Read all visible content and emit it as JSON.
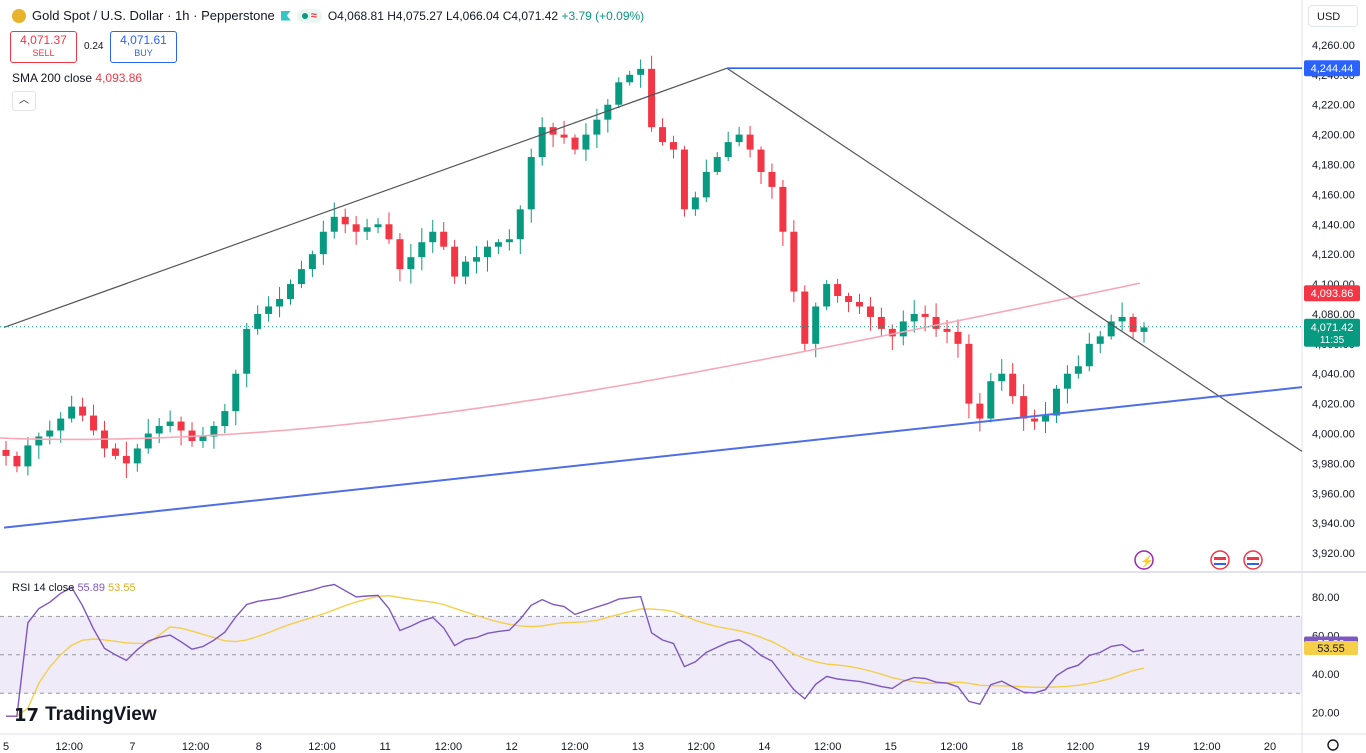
{
  "header": {
    "symbol": "Gold Spot / U.S. Dollar · 1h · Pepperstone",
    "open": "O4,068.81",
    "high": "H4,075.27",
    "low": "L4,066.04",
    "close": "C4,071.42",
    "change": "+3.79 (+0.09%)"
  },
  "trade": {
    "sell_price": "4,071.37",
    "sell_label": "SELL",
    "spread": "0.24",
    "buy_price": "4,071.61",
    "buy_label": "BUY"
  },
  "indicators": {
    "sma_label": "SMA 200 close",
    "sma_value": "4,093.86",
    "rsi_label": "RSI 14 close",
    "rsi_value": "55.89",
    "rsi_ma_value": "53.55"
  },
  "currency": "USD",
  "branding": "TradingView",
  "colors": {
    "up": "#089981",
    "down": "#f23645",
    "sma": "#f7a8b8",
    "rsi": "#7e57c2",
    "rsi_ma": "#f5cf4a",
    "trendline": "#4f6ee8",
    "hline": "#2962ff",
    "price": "#089981"
  },
  "chart_data": {
    "type": "candlestick",
    "ylim": [
      3910,
      4270
    ],
    "y_ticks": [
      "4,260.00",
      "4,240.00",
      "4,220.00",
      "4,200.00",
      "4,180.00",
      "4,160.00",
      "4,140.00",
      "4,120.00",
      "4,100.00",
      "4,080.00",
      "4,060.00",
      "4,040.00",
      "4,020.00",
      "4,000.00",
      "3,980.00",
      "3,960.00",
      "3,940.00",
      "3,920.00"
    ],
    "x_ticks": [
      "5",
      "12:00",
      "7",
      "12:00",
      "8",
      "12:00",
      "11",
      "12:00",
      "12",
      "12:00",
      "13",
      "12:00",
      "14",
      "12:00",
      "15",
      "12:00",
      "18",
      "12:00",
      "19",
      "12:00",
      "20"
    ],
    "close_path": [
      3985,
      3978,
      3992,
      3998,
      4002,
      4010,
      4018,
      4012,
      4002,
      3990,
      3985,
      3980,
      3990,
      4000,
      4005,
      4008,
      4002,
      3995,
      3998,
      4005,
      4015,
      4040,
      4070,
      4080,
      4085,
      4090,
      4100,
      4110,
      4120,
      4135,
      4145,
      4140,
      4135,
      4138,
      4140,
      4130,
      4110,
      4118,
      4128,
      4135,
      4125,
      4105,
      4115,
      4118,
      4125,
      4128,
      4130,
      4150,
      4185,
      4205,
      4200,
      4198,
      4190,
      4200,
      4210,
      4220,
      4235,
      4240,
      4244,
      4205,
      4195,
      4190,
      4150,
      4158,
      4175,
      4185,
      4195,
      4200,
      4190,
      4175,
      4165,
      4135,
      4095,
      4060,
      4085,
      4100,
      4092,
      4088,
      4085,
      4078,
      4070,
      4065,
      4075,
      4080,
      4078,
      4070,
      4068,
      4060,
      4020,
      4010,
      4035,
      4040,
      4025,
      4010,
      4008,
      4012,
      4030,
      4040,
      4045,
      4060,
      4065,
      4075,
      4078,
      4068,
      4071
    ],
    "current_price": "4,071.42",
    "countdown": "11:35",
    "sma_price": "4,093.86",
    "hline_price": "4,244.44",
    "rsi_ticks": [
      "80.00",
      "60.00",
      "40.00",
      "20.00"
    ],
    "rsi_ylim": [
      15,
      90
    ],
    "rsi_levels": [
      70,
      30,
      50
    ],
    "rsi_value": "55.89",
    "rsi_ma_value": "53.55"
  }
}
